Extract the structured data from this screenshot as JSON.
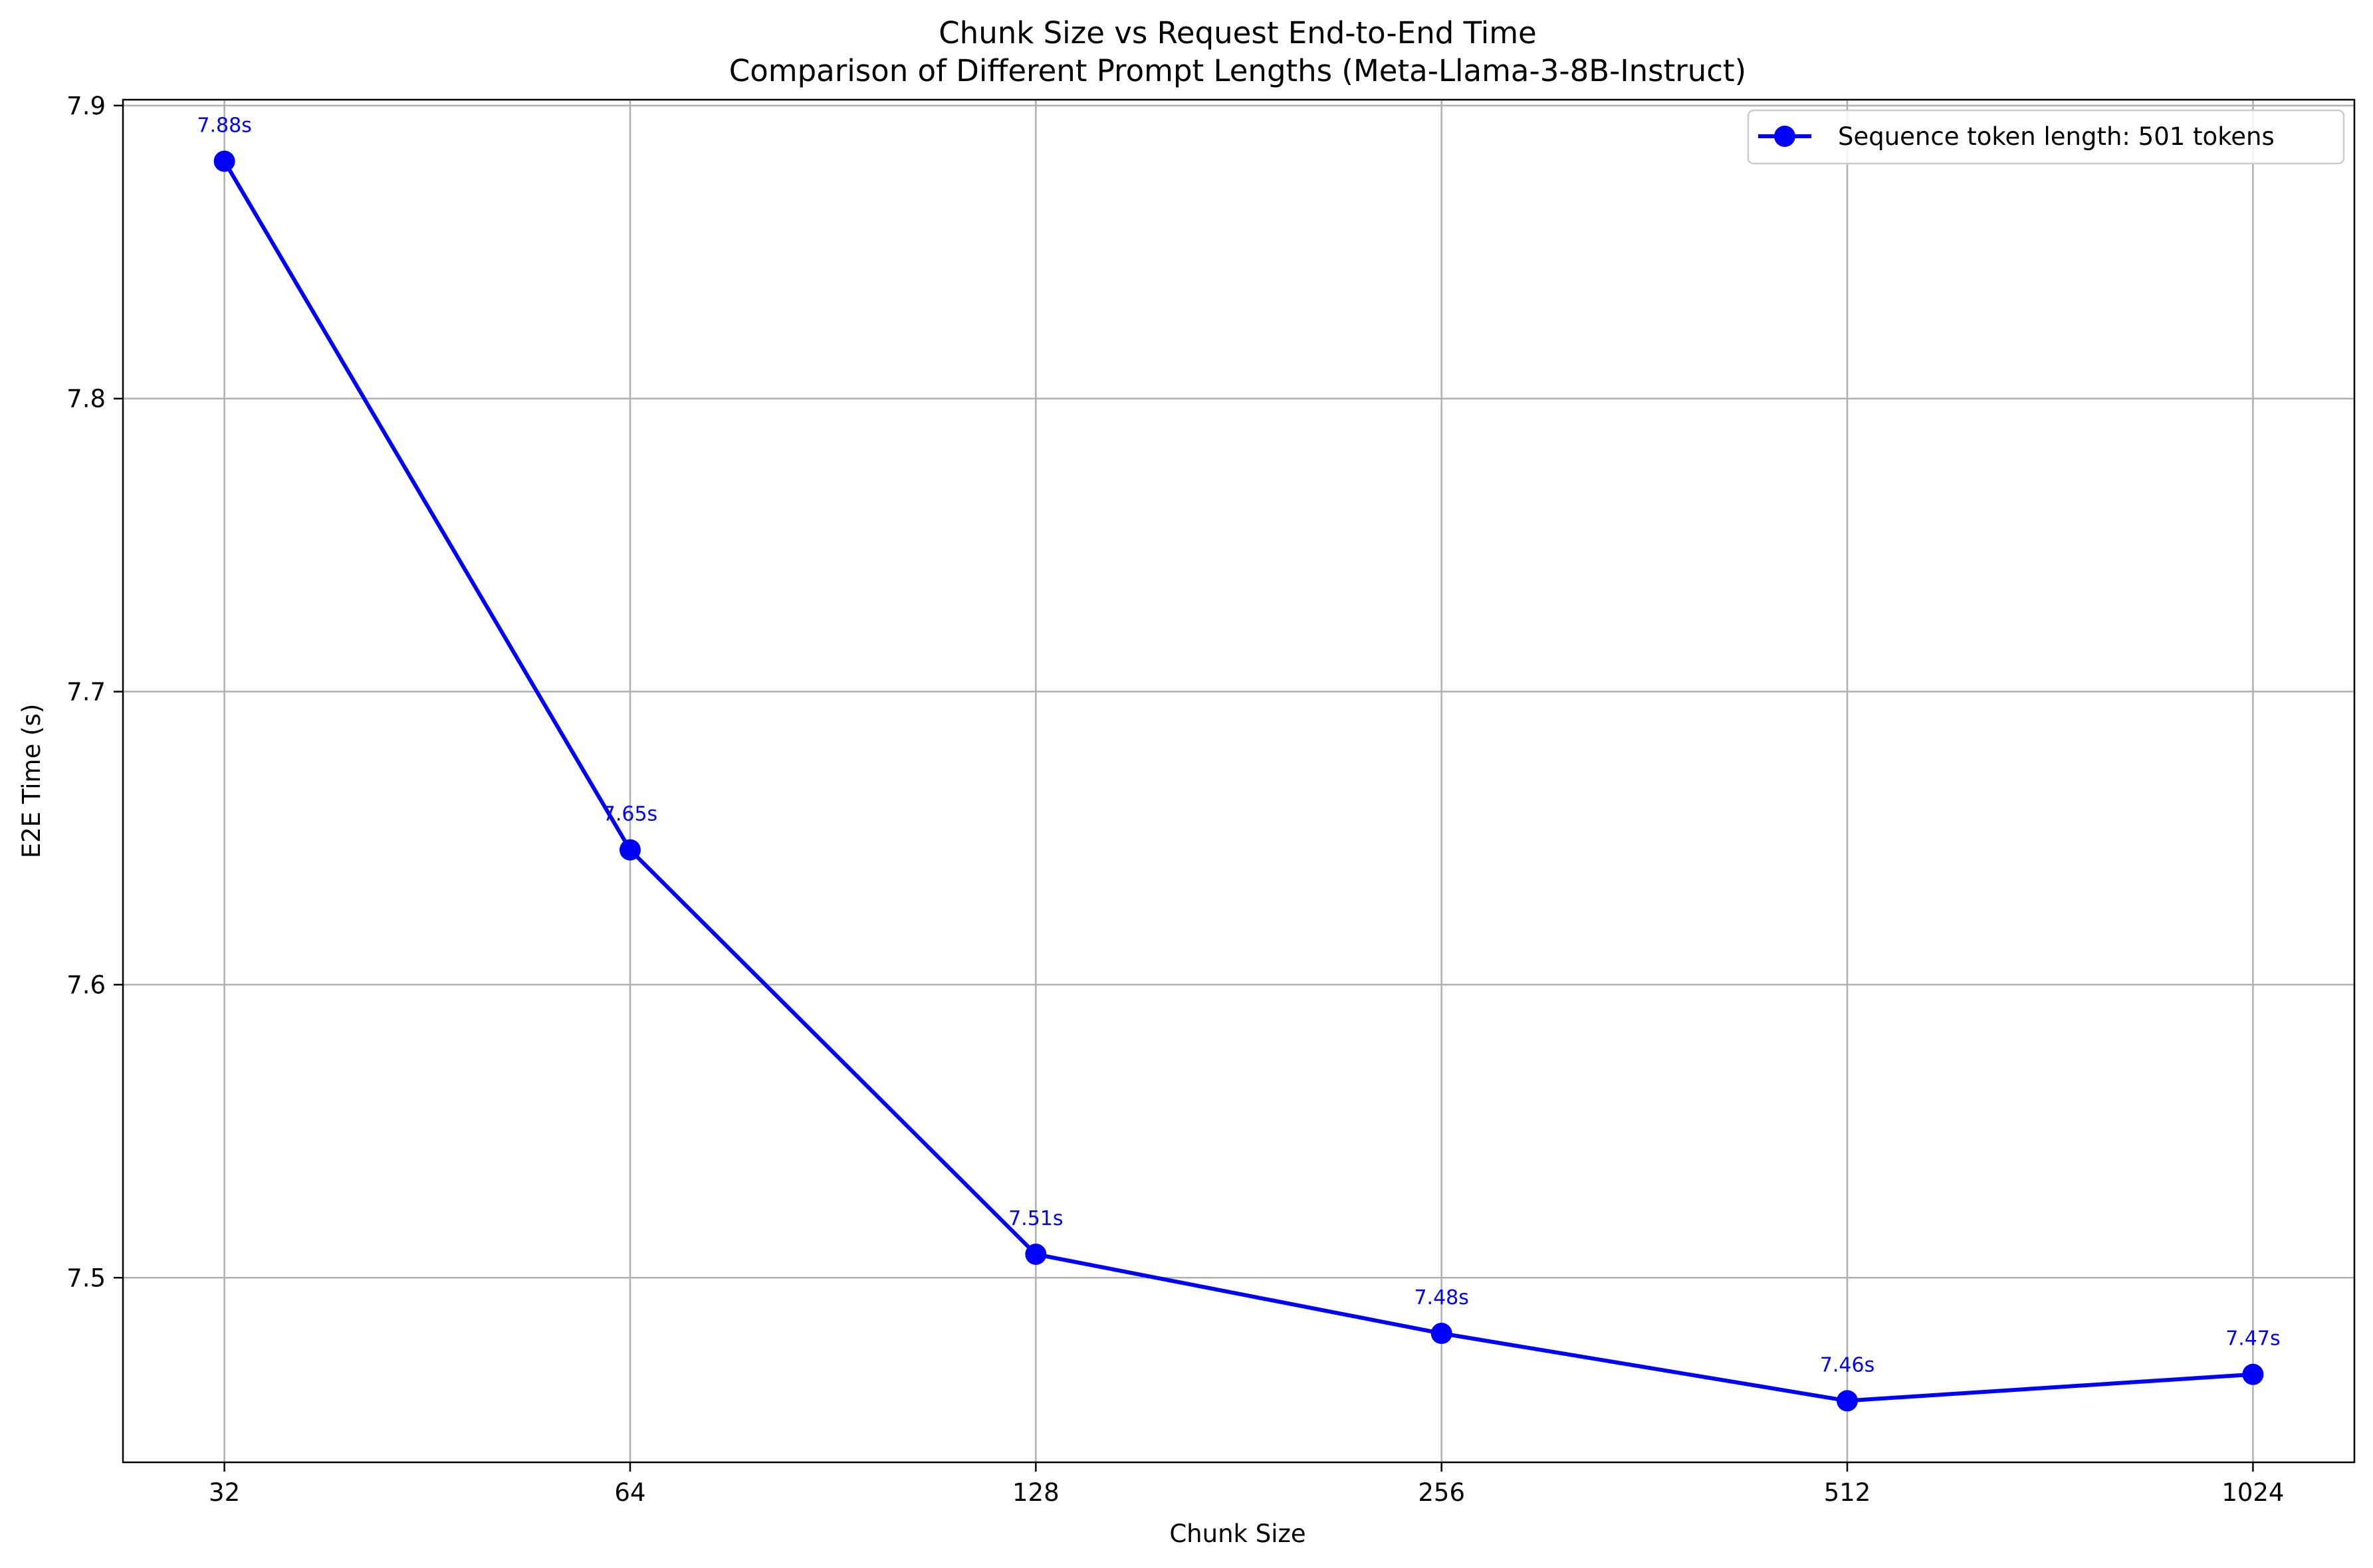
{
  "chart_data": {
    "type": "line",
    "title": "Chunk Size vs Request End-to-End Time",
    "subtitle": "Comparison of Different Prompt Lengths (Meta-Llama-3-8B-Instruct)",
    "xlabel": "Chunk Size",
    "ylabel": "E2E Time (s)",
    "x_scale": "log2",
    "categories": [
      "32",
      "64",
      "128",
      "256",
      "512",
      "1024"
    ],
    "y_ticks": [
      "7.5",
      "7.6",
      "7.7",
      "7.8",
      "7.9"
    ],
    "ylim": [
      7.437,
      7.902
    ],
    "grid": true,
    "legend_position": "top-right",
    "series": [
      {
        "name": "Sequence token length: 501 tokens",
        "color": "#0000ff",
        "x": [
          32,
          64,
          128,
          256,
          512,
          1024
        ],
        "values": [
          7.881,
          7.646,
          7.508,
          7.481,
          7.458,
          7.467
        ],
        "labels": [
          "7.88s",
          "7.65s",
          "7.51s",
          "7.48s",
          "7.46s",
          "7.47s"
        ]
      }
    ]
  }
}
